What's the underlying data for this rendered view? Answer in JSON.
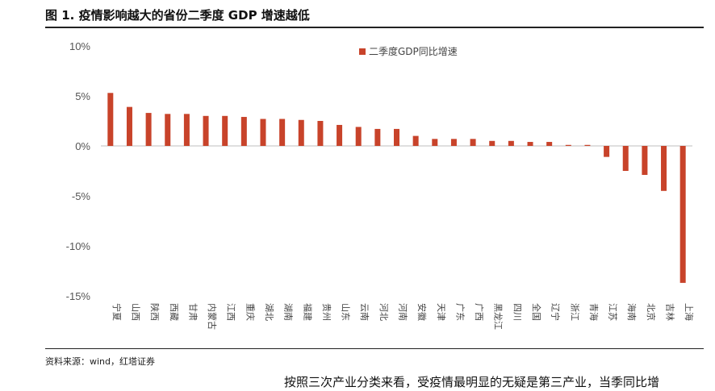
{
  "figure_title": "图 1. 疫情影响越大的省份二季度 GDP 增速越低",
  "source": "资料来源：wind，红塔证券",
  "body_text": "按照三次产业分类来看，受疫情最明显的无疑是第三产业，当季同比增",
  "colors": {
    "bar": "#C8432A",
    "axis": "#BFBFBF"
  },
  "chart_data": {
    "type": "bar",
    "title": "",
    "xlabel": "",
    "ylabel": "",
    "ylim": [
      -15,
      10
    ],
    "yticks": [
      10,
      5,
      0,
      -5,
      -10,
      -15
    ],
    "ytick_labels": [
      "10%",
      "5%",
      "0%",
      "-5%",
      "-10%",
      "-15%"
    ],
    "legend_position": "top-right",
    "grid": false,
    "categories": [
      "宁夏",
      "山西",
      "陕西",
      "西藏",
      "甘肃",
      "内蒙古",
      "江西",
      "重庆",
      "湖北",
      "湖南",
      "福建",
      "贵州",
      "山东",
      "云南",
      "河北",
      "河南",
      "安徽",
      "天津",
      "广东",
      "广西",
      "黑龙江",
      "四川",
      "全国",
      "辽宁",
      "浙江",
      "青海",
      "江苏",
      "海南",
      "北京",
      "吉林",
      "上海"
    ],
    "series": [
      {
        "name": "二季度GDP同比增速",
        "values": [
          5.3,
          3.9,
          3.3,
          3.2,
          3.2,
          3.0,
          3.0,
          2.9,
          2.7,
          2.7,
          2.6,
          2.5,
          2.1,
          1.9,
          1.7,
          1.7,
          1.0,
          0.7,
          0.7,
          0.7,
          0.5,
          0.5,
          0.4,
          0.4,
          0.1,
          0.1,
          -1.1,
          -2.5,
          -2.9,
          -4.5,
          -13.7
        ]
      }
    ]
  }
}
